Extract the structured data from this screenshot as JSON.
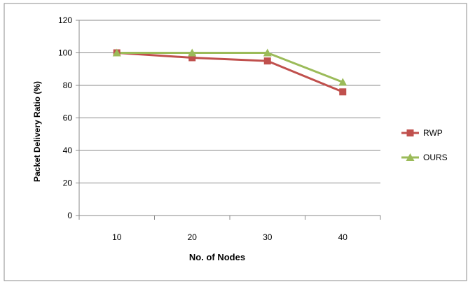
{
  "chart_data": {
    "type": "line",
    "title": "",
    "xlabel": "No. of Nodes",
    "ylabel": "Packet Delivery Ratio (%)",
    "categories": [
      "10",
      "20",
      "30",
      "40"
    ],
    "ylim": [
      0,
      120
    ],
    "yticks": [
      "0",
      "20",
      "40",
      "60",
      "80",
      "100",
      "120"
    ],
    "grid": true,
    "legend_position": "right",
    "series": [
      {
        "name": "RWP",
        "values": [
          100,
          97,
          95,
          76
        ],
        "color": "#c0504d",
        "marker": "square"
      },
      {
        "name": "OURS",
        "values": [
          100,
          100,
          100,
          82
        ],
        "color": "#9bbb59",
        "marker": "triangle"
      }
    ]
  }
}
